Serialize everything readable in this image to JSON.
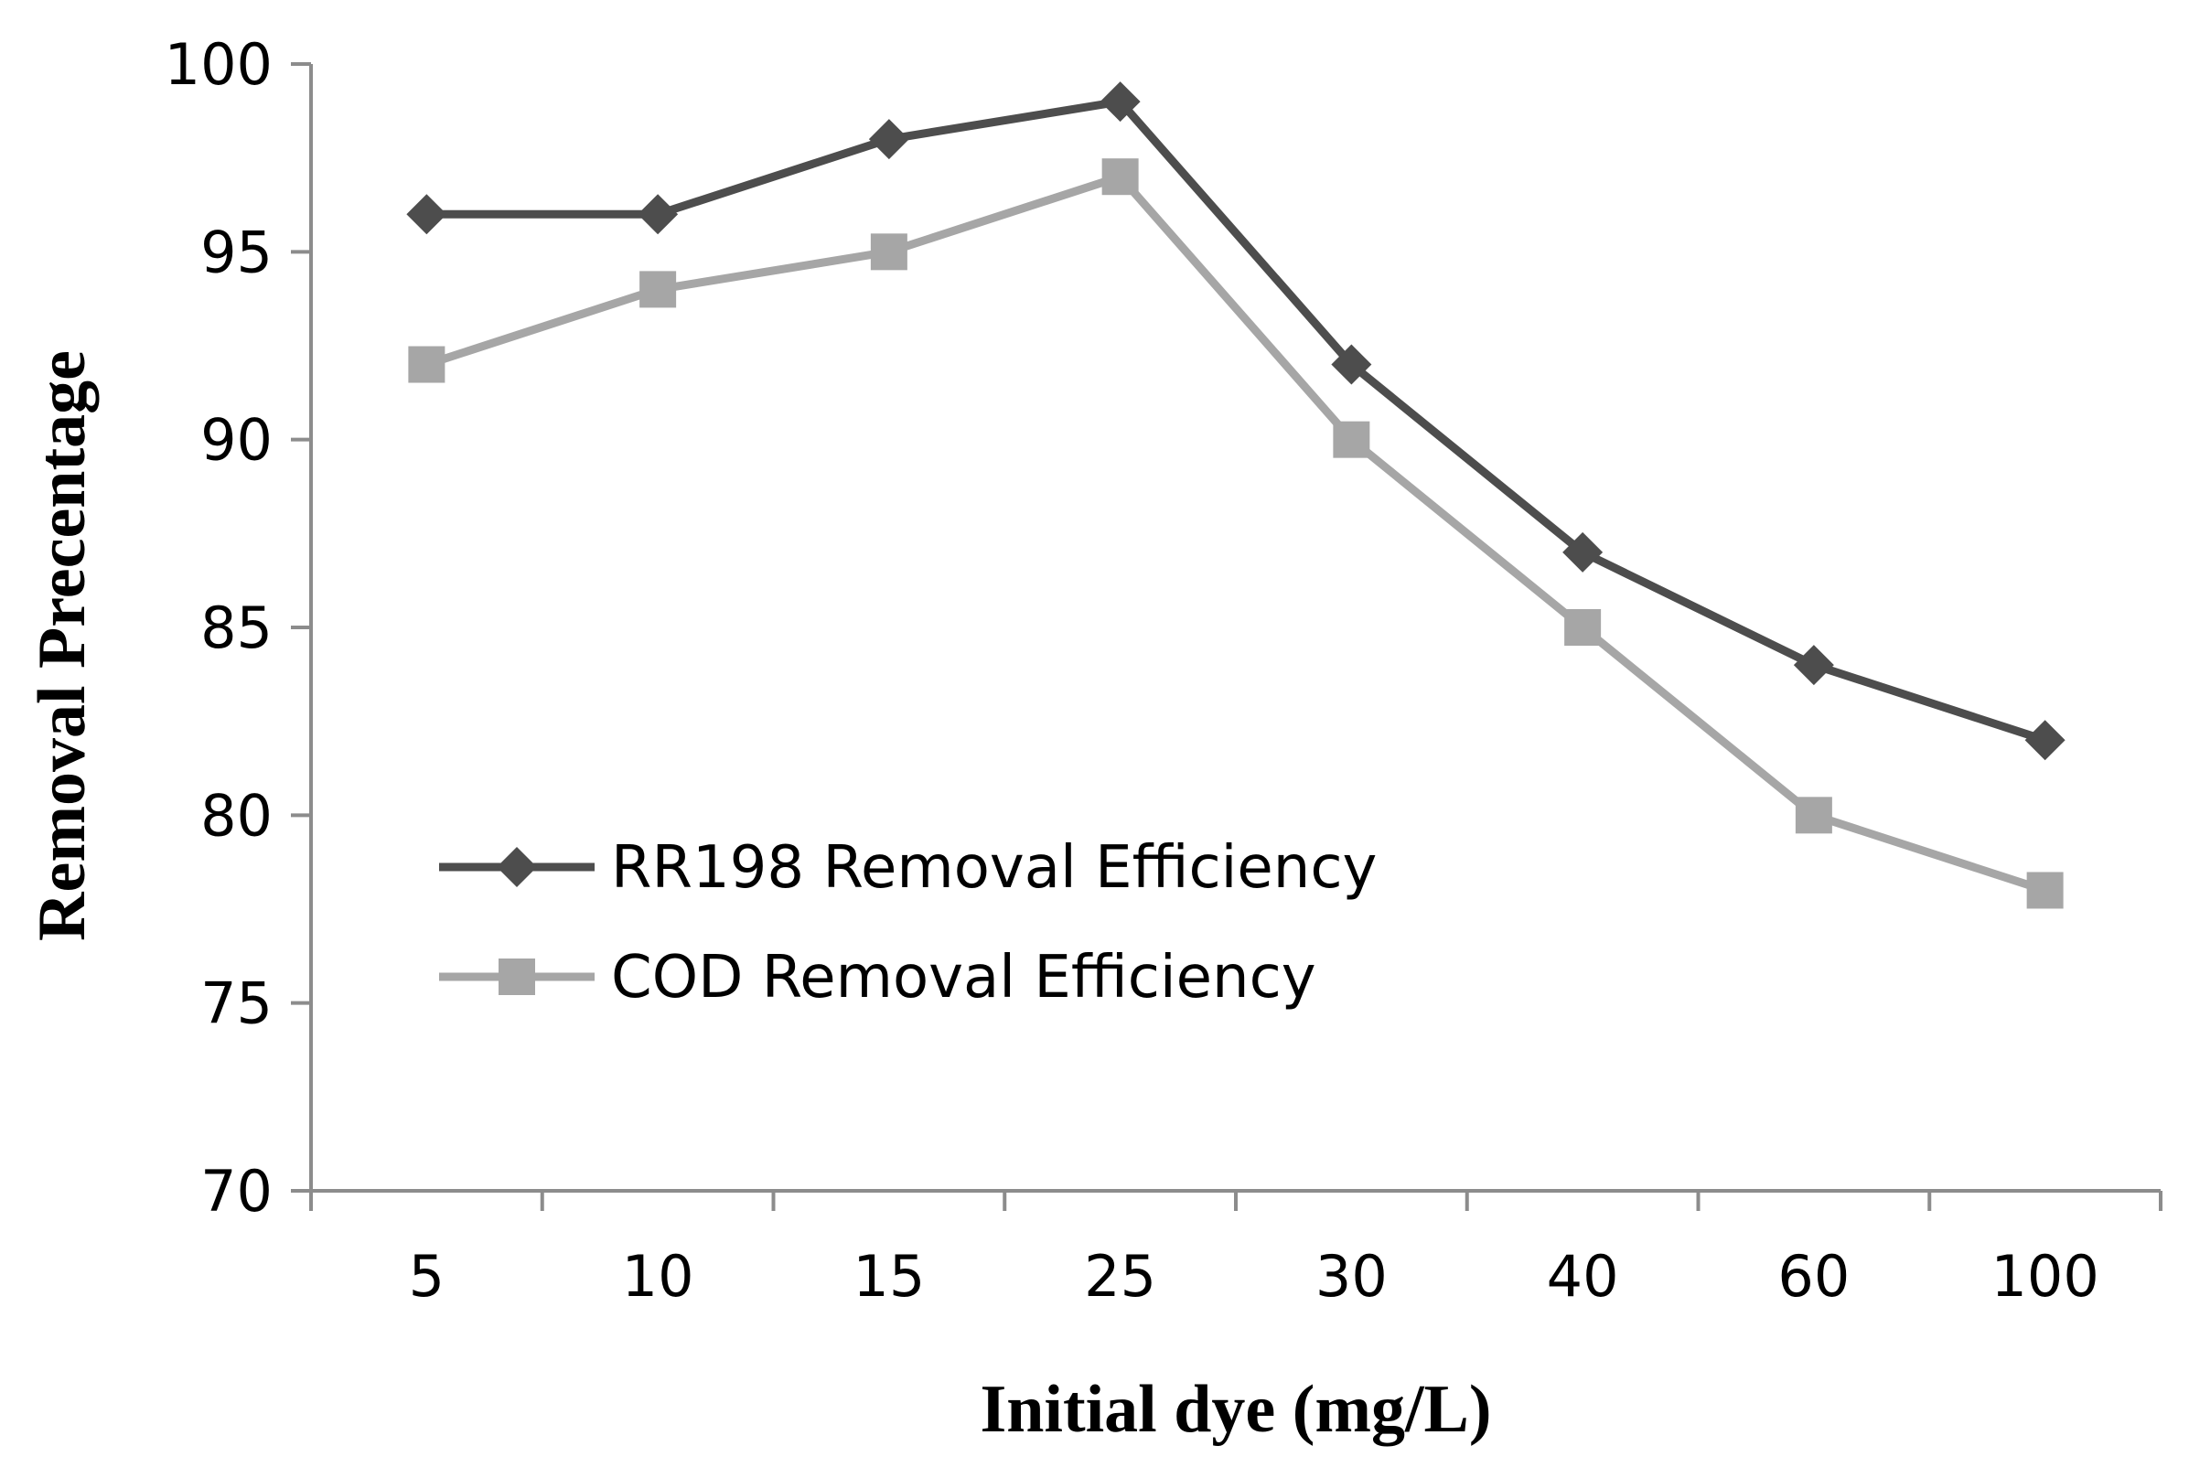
{
  "chart_data": {
    "type": "line",
    "title": "",
    "xlabel": "Initial dye (mg/L)",
    "ylabel": "Removal Precentage",
    "categories": [
      "5",
      "10",
      "15",
      "25",
      "30",
      "40",
      "60",
      "100"
    ],
    "ylim": [
      70,
      100
    ],
    "yticks": [
      70,
      75,
      80,
      85,
      90,
      95,
      100
    ],
    "ytick_labels": [
      "70",
      "75",
      "80",
      "85",
      "90",
      "95",
      "100"
    ],
    "grid": false,
    "legend_position": "lower-left",
    "series": [
      {
        "name": "RR198 Removal Efficiency",
        "marker": "diamond",
        "color": "#4d4d4d",
        "values": [
          96,
          96,
          98,
          99,
          92,
          87,
          84,
          82
        ]
      },
      {
        "name": "COD Removal Efficiency",
        "marker": "square",
        "color": "#a6a6a6",
        "values": [
          92,
          94,
          95,
          97,
          90,
          85,
          80,
          78
        ]
      }
    ]
  }
}
